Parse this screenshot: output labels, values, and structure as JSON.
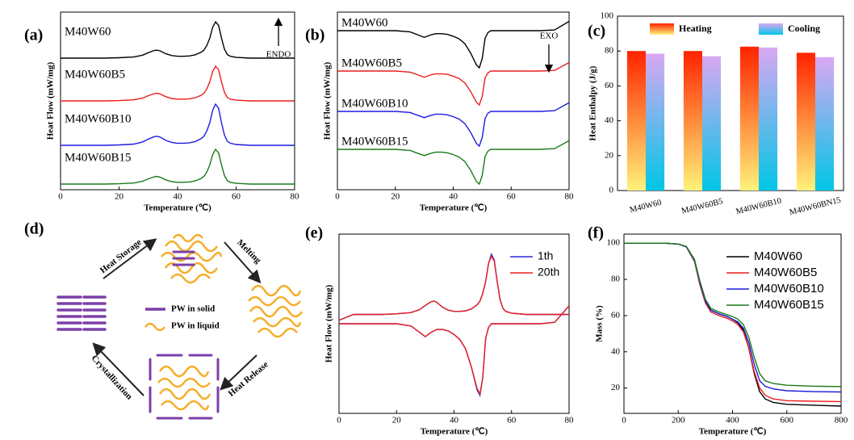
{
  "chart_data": [
    {
      "type": "line",
      "panel_label": "(a)",
      "xlabel": "Temperature (℃)",
      "ylabel": "Heat Flow (mW/mg)",
      "annotation": {
        "text": "ENDO",
        "arrow": "up"
      },
      "legend": "inline",
      "xlim": [
        0,
        80
      ],
      "xticks": [
        0,
        20,
        40,
        60,
        80
      ],
      "ylim": [
        0,
        22
      ],
      "x": [
        0,
        5,
        10,
        15,
        20,
        25,
        28,
        30,
        32,
        33,
        34,
        36,
        38,
        40,
        42,
        44,
        46,
        48,
        49,
        50,
        51,
        52,
        53,
        54,
        55,
        56,
        57,
        58,
        60,
        65,
        70,
        75,
        80
      ],
      "series": [
        {
          "name": "M40W60",
          "color": "#000000",
          "values": [
            16.3,
            16.3,
            16.3,
            16.3,
            16.35,
            16.44,
            16.66,
            16.98,
            17.25,
            17.29,
            17.2,
            16.84,
            16.62,
            16.53,
            16.53,
            16.57,
            16.71,
            17.02,
            17.29,
            17.88,
            18.78,
            20.13,
            20.8,
            20.35,
            18.78,
            17.43,
            16.75,
            16.53,
            16.39,
            16.3,
            16.3,
            16.3,
            16.3
          ]
        },
        {
          "name": "M40W60B5",
          "color": "#ee1c1c",
          "values": [
            11,
            11,
            11,
            11,
            11.04,
            11.13,
            11.34,
            11.65,
            11.9,
            11.95,
            11.86,
            11.52,
            11.3,
            11.22,
            11.22,
            11.26,
            11.39,
            11.69,
            11.95,
            12.51,
            13.37,
            14.66,
            15.3,
            14.87,
            13.37,
            12.08,
            11.43,
            11.22,
            11.09,
            11,
            11,
            11,
            11
          ]
        },
        {
          "name": "M40W60B10",
          "color": "#1c1ce0",
          "values": [
            5.5,
            5.5,
            5.5,
            5.5,
            5.55,
            5.65,
            5.91,
            6.27,
            6.57,
            6.62,
            6.52,
            6.11,
            5.86,
            5.76,
            5.76,
            5.81,
            5.96,
            6.32,
            6.62,
            7.29,
            8.31,
            9.84,
            10.6,
            10.09,
            8.31,
            6.78,
            6.01,
            5.76,
            5.6,
            5.5,
            5.5,
            5.5,
            5.5
          ]
        },
        {
          "name": "M40W60B15",
          "color": "#1a7a1a",
          "values": [
            0.7,
            0.7,
            0.7,
            0.7,
            0.74,
            0.83,
            1.04,
            1.35,
            1.6,
            1.65,
            1.56,
            1.22,
            1,
            0.92,
            0.92,
            0.96,
            1.09,
            1.39,
            1.65,
            2.21,
            3.07,
            4.36,
            5,
            4.57,
            3.07,
            1.78,
            1.13,
            0.92,
            0.79,
            0.7,
            0.7,
            0.7,
            0.7
          ]
        }
      ]
    },
    {
      "type": "line",
      "panel_label": "(b)",
      "xlabel": "Temperature (℃)",
      "ylabel": "Heat Flow (mW/mg)",
      "annotation": {
        "text": "EXO",
        "arrow": "down"
      },
      "legend": "inline",
      "xlim": [
        0,
        80
      ],
      "xticks": [
        0,
        20,
        40,
        60,
        80
      ],
      "ylim": [
        0,
        22
      ],
      "x": [
        0,
        5,
        10,
        15,
        20,
        25,
        28,
        30,
        32,
        33,
        34,
        36,
        38,
        40,
        42,
        44,
        46,
        48,
        49,
        50,
        51,
        52,
        53,
        54,
        55,
        56,
        57,
        58,
        60,
        65,
        70,
        75,
        80
      ],
      "series": [
        {
          "name": "M40W60",
          "color": "#000000",
          "values": [
            19.7,
            19.7,
            19.7,
            19.7,
            19.7,
            19.56,
            19.15,
            18.87,
            19.15,
            19.24,
            19.33,
            19.33,
            19.24,
            19.01,
            18.69,
            18.09,
            16.94,
            15.47,
            15.1,
            16.25,
            18.78,
            19.47,
            19.7,
            19.7,
            19.7,
            19.7,
            19.7,
            19.7,
            19.7,
            19.7,
            19.7,
            19.79,
            20.85
          ]
        },
        {
          "name": "M40W60B5",
          "color": "#ee1c1c",
          "values": [
            14.7,
            14.7,
            14.7,
            14.7,
            14.7,
            14.57,
            14.2,
            13.94,
            14.2,
            14.28,
            14.36,
            14.36,
            14.28,
            14.07,
            13.78,
            13.23,
            12.18,
            10.84,
            10.5,
            11.55,
            13.86,
            14.49,
            14.7,
            14.7,
            14.7,
            14.7,
            14.7,
            14.7,
            14.7,
            14.7,
            14.7,
            14.78,
            15.75
          ]
        },
        {
          "name": "M40W60B10",
          "color": "#1c1ce0",
          "values": [
            9.7,
            9.7,
            9.7,
            9.7,
            9.7,
            9.57,
            9.18,
            8.93,
            9.18,
            9.27,
            9.36,
            9.36,
            9.27,
            9.05,
            8.75,
            8.19,
            7.12,
            5.74,
            5.4,
            6.47,
            8.84,
            9.48,
            9.7,
            9.7,
            9.7,
            9.7,
            9.7,
            9.7,
            9.7,
            9.7,
            9.7,
            9.79,
            10.78
          ]
        },
        {
          "name": "M40W60B15",
          "color": "#1a7a1a",
          "values": [
            5,
            5,
            5,
            5,
            5,
            4.87,
            4.48,
            4.23,
            4.48,
            4.57,
            4.66,
            4.66,
            4.57,
            4.35,
            4.05,
            3.49,
            2.42,
            1.04,
            0.7,
            1.77,
            4.14,
            4.78,
            5,
            5,
            5,
            5,
            5,
            5,
            5,
            5,
            5,
            5.09,
            6.08
          ]
        }
      ]
    },
    {
      "type": "bar",
      "panel_label": "(c)",
      "ylabel": "Heat Enthalpy (J/g)",
      "legend": "top",
      "categories": [
        "M40W60",
        "M40W60B5",
        "M40W60B10",
        "M40W60BN15"
      ],
      "ylim": [
        0,
        100
      ],
      "yticks": [
        0,
        20,
        40,
        60,
        80,
        100
      ],
      "series": [
        {
          "name": "Heating",
          "color": [
            "#ff2400",
            "#fff27a"
          ],
          "values": [
            80,
            80,
            82.5,
            79
          ]
        },
        {
          "name": "Cooling",
          "color": [
            "#d9a8f2",
            "#00c6e6"
          ],
          "values": [
            78.5,
            77,
            82,
            76.5
          ]
        }
      ]
    },
    {
      "type": "line",
      "panel_label": "(e)",
      "xlabel": "Temperature (℃)",
      "ylabel": "Heat Flow (mW/mg)",
      "legend": "upper right",
      "xlim": [
        0,
        80
      ],
      "xticks": [
        0,
        20,
        40,
        60,
        80
      ],
      "ylim": [
        0,
        25
      ],
      "x": [
        0,
        5,
        10,
        15,
        20,
        25,
        28,
        30,
        32,
        33,
        34,
        36,
        38,
        40,
        42,
        44,
        46,
        48,
        49,
        50,
        51,
        52,
        53,
        54,
        55,
        56,
        57,
        58,
        60,
        65,
        70,
        75,
        80
      ],
      "series": [
        {
          "name": "1th",
          "color": "#2a2ad8",
          "values": [
            13,
            13.8,
            13.8,
            13.8,
            13.88,
            14.05,
            14.47,
            15.06,
            15.56,
            15.65,
            15.48,
            14.81,
            14.39,
            14.22,
            14.22,
            14.3,
            14.56,
            15.14,
            15.65,
            16.74,
            18.42,
            20.94,
            22.2,
            21.36,
            18.42,
            15.9,
            14.64,
            14.22,
            13.97,
            13.8,
            13.8,
            13.8,
            13.8
          ],
          "values2": [
            12.5,
            12.5,
            12.5,
            12.5,
            12.5,
            12.2,
            11.3,
            10.7,
            11.3,
            11.5,
            11.7,
            11.7,
            11.5,
            11,
            10.3,
            9,
            6.5,
            3.3,
            2.5,
            5,
            10.5,
            12,
            12.5,
            12.5,
            12.5,
            12.5,
            12.5,
            12.5,
            12.5,
            12.5,
            12.5,
            12.7,
            15
          ]
        },
        {
          "name": "20th",
          "color": "#e82020",
          "values": [
            13,
            13.8,
            13.8,
            13.8,
            13.88,
            14.05,
            14.47,
            15.06,
            15.56,
            15.65,
            15.48,
            14.81,
            14.39,
            14.22,
            14.22,
            14.3,
            14.56,
            15.14,
            15.65,
            16.74,
            18.42,
            20.94,
            21.9,
            21.2,
            18.42,
            15.9,
            14.64,
            14.22,
            13.97,
            13.8,
            13.8,
            13.8,
            13.8
          ],
          "values2": [
            12.5,
            12.5,
            12.5,
            12.5,
            12.5,
            12.2,
            11.3,
            10.7,
            11.3,
            11.5,
            11.7,
            11.7,
            11.5,
            11,
            10.3,
            9,
            6.5,
            3.5,
            2.7,
            5,
            10.5,
            12,
            12.5,
            12.5,
            12.5,
            12.5,
            12.5,
            12.5,
            12.5,
            12.5,
            12.5,
            12.7,
            15
          ]
        }
      ]
    },
    {
      "type": "line",
      "panel_label": "(f)",
      "xlabel": "Temperature (℃)",
      "ylabel": "Mass (%)",
      "legend": "upper right",
      "xlim": [
        0,
        800
      ],
      "xticks": [
        0,
        200,
        400,
        600,
        800
      ],
      "ylim": [
        6,
        105
      ],
      "yticks": [
        20,
        40,
        60,
        80,
        100
      ],
      "x": [
        0,
        100,
        150,
        200,
        230,
        260,
        280,
        300,
        320,
        350,
        380,
        400,
        420,
        440,
        460,
        480,
        500,
        520,
        550,
        600,
        700,
        800
      ],
      "series": [
        {
          "name": "M40W60",
          "color": "#000000",
          "values": [
            100,
            100,
            100,
            99.5,
            98,
            90,
            78,
            68,
            63,
            61,
            59.5,
            58,
            56,
            52,
            42,
            28,
            18,
            14,
            12,
            11,
            10.5,
            10
          ]
        },
        {
          "name": "M40W60B5",
          "color": "#ee1c1c",
          "values": [
            100,
            100,
            100,
            99.5,
            98,
            90,
            77,
            67,
            62,
            60,
            58.5,
            57,
            55,
            51,
            42,
            29,
            20,
            16,
            14,
            13,
            12.7,
            12.5
          ]
        },
        {
          "name": "M40W60B10",
          "color": "#1c1ce0",
          "values": [
            100,
            100,
            100,
            99.5,
            98,
            90.5,
            78,
            68,
            63,
            61,
            59.5,
            58,
            56.5,
            53,
            45,
            33,
            24,
            21,
            19.5,
            18.5,
            18,
            17.8
          ]
        },
        {
          "name": "M40W60B15",
          "color": "#1a7a1a",
          "values": [
            100,
            100,
            100,
            99.5,
            98.2,
            91,
            79,
            69,
            64,
            62,
            60.5,
            59.5,
            58,
            55,
            48,
            37,
            28,
            24,
            22.5,
            21.5,
            21,
            20.8
          ]
        }
      ]
    }
  ],
  "diagram": {
    "panel_label": "(d)",
    "steps": [
      "Heat Storage",
      "Melting",
      "Heat Release",
      "Crystallization"
    ],
    "legend": [
      "PW in solid",
      "PW in liquid"
    ]
  }
}
